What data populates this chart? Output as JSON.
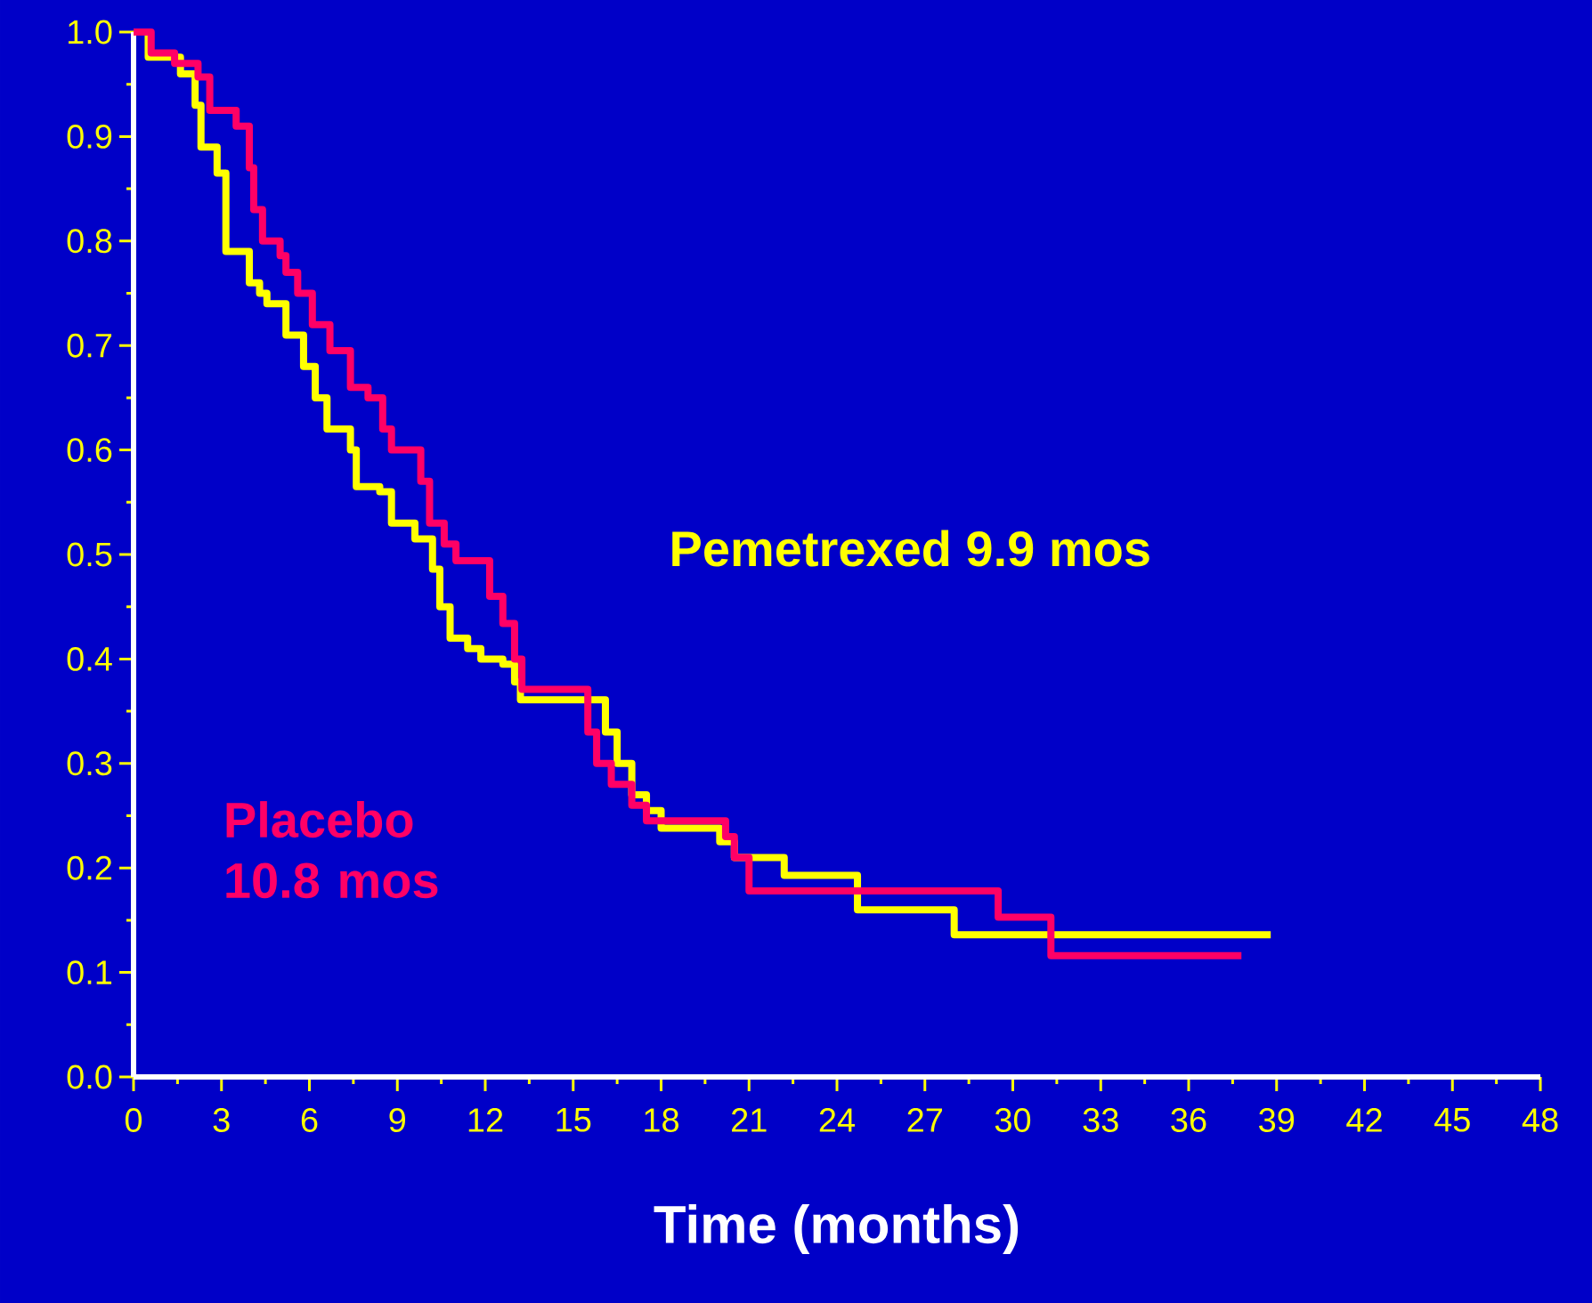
{
  "chart_data": {
    "type": "step",
    "xlabel": "Time (months)",
    "xlim": [
      0,
      48
    ],
    "ylim": [
      0,
      1
    ],
    "xticks": [
      0,
      3,
      6,
      9,
      12,
      15,
      18,
      21,
      24,
      27,
      30,
      33,
      36,
      39,
      42,
      45,
      48
    ],
    "yticks": [
      {
        "value": 0,
        "label": "0.0"
      },
      {
        "value": 0.1,
        "label": "0.1"
      },
      {
        "value": 0.2,
        "label": "0.2"
      },
      {
        "value": 0.3,
        "label": "0.3"
      },
      {
        "value": 0.4,
        "label": "0.4"
      },
      {
        "value": 0.5,
        "label": "0.5"
      },
      {
        "value": 0.6,
        "label": "0.6"
      },
      {
        "value": 0.7,
        "label": "0.7"
      },
      {
        "value": 0.8,
        "label": "0.8"
      },
      {
        "value": 0.9,
        "label": "0.9"
      },
      {
        "value": 1,
        "label": "1.0"
      }
    ],
    "grid": false,
    "marker": "none",
    "line_style": "solid",
    "series": [
      {
        "name": "Pemetrexed 9.9 mos",
        "color": "#ffff00",
        "x": [
          0,
          0.5,
          1.6,
          2.1,
          2.3,
          2.85,
          3.15,
          3.95,
          4.3,
          4.55,
          5.2,
          5.8,
          6.2,
          6.6,
          7.4,
          7.6,
          8.4,
          8.8,
          9.6,
          10.2,
          10.45,
          10.8,
          11.4,
          11.85,
          12.6,
          13.0,
          13.2,
          16.1,
          16.5,
          17.0,
          17.5,
          18.0,
          20.0,
          20.5,
          21.2,
          22.2,
          24.7,
          28.0,
          38.8
        ],
        "values": [
          1.0,
          0.976,
          0.96,
          0.93,
          0.89,
          0.865,
          0.79,
          0.76,
          0.75,
          0.74,
          0.71,
          0.68,
          0.65,
          0.62,
          0.6,
          0.565,
          0.56,
          0.53,
          0.515,
          0.486,
          0.45,
          0.42,
          0.41,
          0.4,
          0.395,
          0.378,
          0.361,
          0.33,
          0.3,
          0.27,
          0.255,
          0.238,
          0.225,
          0.21,
          0.21,
          0.193,
          0.16,
          0.136,
          0.136
        ]
      },
      {
        "name": "Placebo 10.8 mos",
        "color": "#ff0066",
        "x": [
          0,
          0.6,
          1.4,
          2.2,
          2.6,
          3.5,
          3.95,
          4.1,
          4.4,
          5.0,
          5.2,
          5.6,
          6.1,
          6.7,
          7.4,
          8.0,
          8.5,
          8.8,
          9.8,
          10.1,
          10.6,
          11.0,
          12.15,
          12.6,
          13.0,
          13.25,
          15.5,
          15.8,
          16.3,
          17.0,
          17.5,
          18.3,
          20.2,
          20.5,
          21.0,
          21.3,
          29.5,
          31.3,
          37.8
        ],
        "values": [
          1.0,
          0.98,
          0.97,
          0.957,
          0.925,
          0.91,
          0.87,
          0.83,
          0.8,
          0.786,
          0.77,
          0.75,
          0.72,
          0.695,
          0.66,
          0.65,
          0.62,
          0.6,
          0.57,
          0.53,
          0.51,
          0.494,
          0.46,
          0.434,
          0.4,
          0.371,
          0.33,
          0.3,
          0.28,
          0.26,
          0.245,
          0.245,
          0.23,
          0.21,
          0.178,
          0.178,
          0.153,
          0.116,
          0.116
        ]
      }
    ]
  }
}
